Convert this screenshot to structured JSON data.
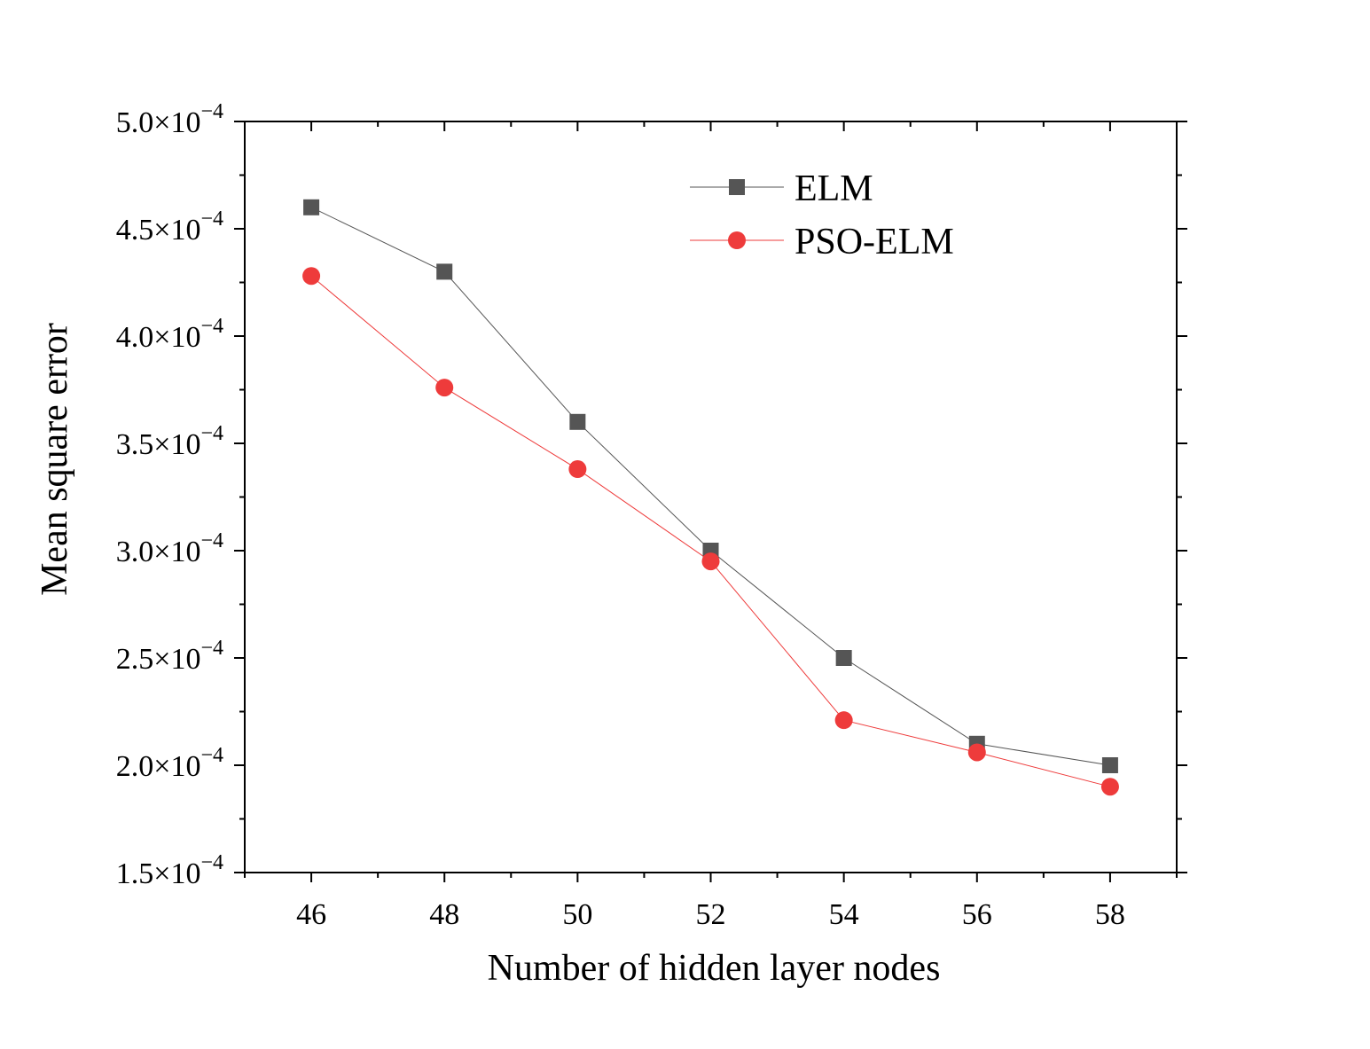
{
  "chart_data": {
    "type": "line",
    "xlabel": "Number of hidden layer nodes",
    "ylabel": "Mean square error",
    "xlim": [
      45,
      59
    ],
    "ylim": [
      0.00015,
      0.0005
    ],
    "x_ticks": [
      46,
      48,
      50,
      52,
      54,
      56,
      58
    ],
    "y_ticks": [
      {
        "value": 0.00015,
        "mantissa": "1.5",
        "base": "×10",
        "exponent": "−4"
      },
      {
        "value": 0.0002,
        "mantissa": "2.0",
        "base": "×10",
        "exponent": "−4"
      },
      {
        "value": 0.00025,
        "mantissa": "2.5",
        "base": "×10",
        "exponent": "−4"
      },
      {
        "value": 0.0003,
        "mantissa": "3.0",
        "base": "×10",
        "exponent": "−4"
      },
      {
        "value": 0.00035,
        "mantissa": "3.5",
        "base": "×10",
        "exponent": "−4"
      },
      {
        "value": 0.0004,
        "mantissa": "4.0",
        "base": "×10",
        "exponent": "−4"
      },
      {
        "value": 0.00045,
        "mantissa": "4.5",
        "base": "×10",
        "exponent": "−4"
      },
      {
        "value": 0.0005,
        "mantissa": "5.0",
        "base": "×10",
        "exponent": "−4"
      }
    ],
    "x": [
      46,
      48,
      50,
      52,
      54,
      56,
      58
    ],
    "series": [
      {
        "name": "ELM",
        "marker": "square",
        "color": "#555555",
        "line_color": "#555555",
        "values": [
          0.00046,
          0.00043,
          0.00036,
          0.0003,
          0.00025,
          0.00021,
          0.0002
        ]
      },
      {
        "name": "PSO-ELM",
        "marker": "circle",
        "color": "#ee3b3b",
        "line_color": "#ee3b3b",
        "values": [
          0.000428,
          0.000376,
          0.000338,
          0.000295,
          0.000221,
          0.000206,
          0.00019
        ]
      }
    ],
    "grid": false,
    "legend_position": "top-right"
  }
}
